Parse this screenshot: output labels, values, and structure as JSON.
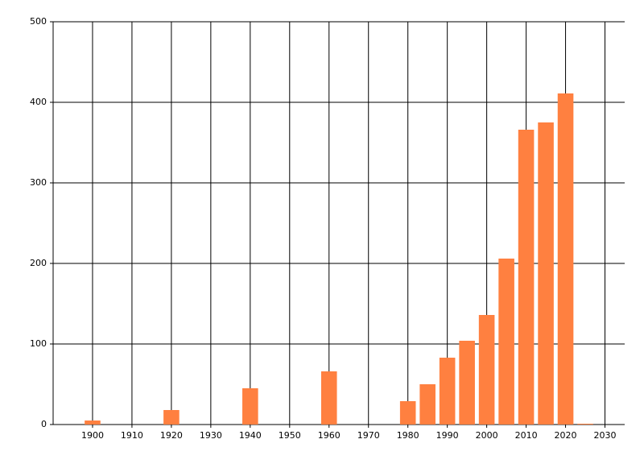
{
  "chart_data": {
    "type": "bar",
    "x": [
      1900,
      1920,
      1940,
      1960,
      1980,
      1985,
      1990,
      1995,
      2000,
      2005,
      2010,
      2015,
      2020,
      2025
    ],
    "values": [
      5,
      18,
      45,
      66,
      29,
      50,
      83,
      104,
      136,
      206,
      366,
      375,
      411,
      1
    ],
    "color": "#ff8040",
    "xlim": [
      1890,
      2035
    ],
    "xticks": [
      1900,
      1910,
      1920,
      1930,
      1940,
      1950,
      1960,
      1970,
      1980,
      1990,
      2000,
      2010,
      2020,
      2030
    ],
    "ylim": [
      0,
      500
    ],
    "yticks": [
      0,
      100,
      200,
      300,
      400,
      500
    ],
    "grid": true
  }
}
